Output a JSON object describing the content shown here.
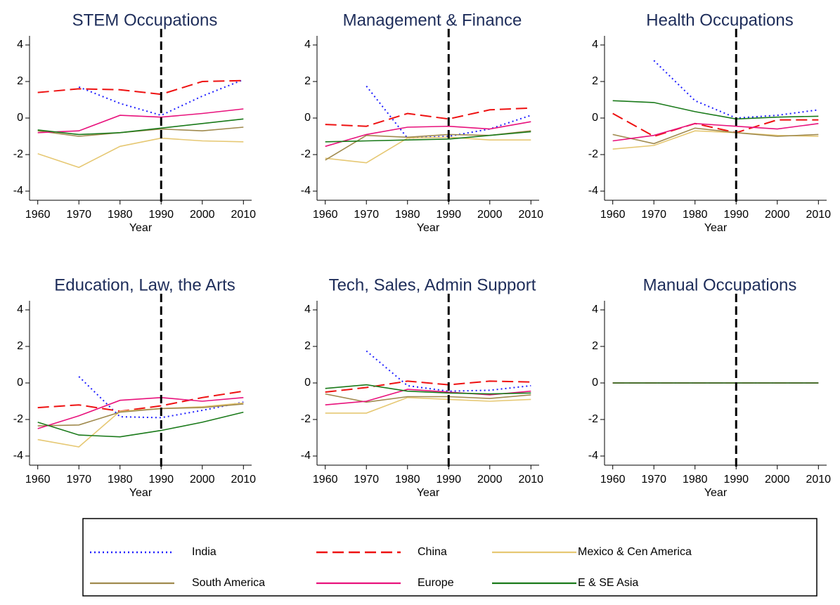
{
  "chart_data": [
    {
      "type": "line",
      "title": "STEM Occupations",
      "xlabel": "Year",
      "x": [
        1960,
        1970,
        1980,
        1990,
        2000,
        2010
      ],
      "xlim": [
        1958,
        2012
      ],
      "xticks": [
        1960,
        1970,
        1980,
        1990,
        2000,
        2010
      ],
      "ylim": [
        -4.5,
        4.5
      ],
      "yticks": [
        -4,
        -2,
        0,
        2,
        4
      ],
      "vline": 1990,
      "series": [
        {
          "name": "India",
          "color": "#1f1fff",
          "style": "dotted",
          "values": [
            null,
            1.7,
            0.8,
            0.15,
            1.2,
            2.1
          ]
        },
        {
          "name": "China",
          "color": "#ee1111",
          "style": "dashed",
          "values": [
            1.4,
            1.6,
            1.55,
            1.3,
            2.0,
            2.05
          ]
        },
        {
          "name": "Mexico & Cen America",
          "color": "#e6c873",
          "style": "solid",
          "values": [
            -1.95,
            -2.7,
            -1.55,
            -1.1,
            -1.25,
            -1.3
          ]
        },
        {
          "name": "South America",
          "color": "#a08a4e",
          "style": "solid",
          "values": [
            -0.7,
            -1.0,
            -0.8,
            -0.6,
            -0.7,
            -0.5
          ]
        },
        {
          "name": "Europe",
          "color": "#e8127c",
          "style": "solid",
          "values": [
            -0.8,
            -0.7,
            0.15,
            0.05,
            0.25,
            0.5
          ]
        },
        {
          "name": "E & SE Asia",
          "color": "#1a7a1a",
          "style": "solid",
          "values": [
            -0.65,
            -0.9,
            -0.8,
            -0.55,
            -0.3,
            -0.05
          ]
        }
      ]
    },
    {
      "type": "line",
      "title": "Management & Finance",
      "xlabel": "Year",
      "x": [
        1960,
        1970,
        1980,
        1990,
        2000,
        2010
      ],
      "xlim": [
        1958,
        2012
      ],
      "xticks": [
        1960,
        1970,
        1980,
        1990,
        2000,
        2010
      ],
      "ylim": [
        -4.5,
        4.5
      ],
      "yticks": [
        -4,
        -2,
        0,
        2,
        4
      ],
      "vline": 1990,
      "series": [
        {
          "name": "India",
          "color": "#1f1fff",
          "style": "dotted",
          "values": [
            null,
            1.75,
            -1.1,
            -1.0,
            -0.6,
            0.15
          ]
        },
        {
          "name": "China",
          "color": "#ee1111",
          "style": "dashed",
          "values": [
            -0.35,
            -0.45,
            0.25,
            -0.05,
            0.45,
            0.55
          ]
        },
        {
          "name": "Mexico & Cen America",
          "color": "#e6c873",
          "style": "solid",
          "values": [
            -2.2,
            -2.45,
            -1.1,
            -1.05,
            -1.2,
            -1.2
          ]
        },
        {
          "name": "South America",
          "color": "#a08a4e",
          "style": "solid",
          "values": [
            -2.3,
            -0.95,
            -1.05,
            -0.9,
            -0.95,
            -0.7
          ]
        },
        {
          "name": "Europe",
          "color": "#e8127c",
          "style": "solid",
          "values": [
            -1.55,
            -0.9,
            -0.5,
            -0.45,
            -0.6,
            -0.2
          ]
        },
        {
          "name": "E & SE Asia",
          "color": "#1a7a1a",
          "style": "solid",
          "values": [
            -1.3,
            -1.25,
            -1.2,
            -1.15,
            -0.95,
            -0.75
          ]
        }
      ]
    },
    {
      "type": "line",
      "title": "Health Occupations",
      "xlabel": "Year",
      "x": [
        1960,
        1970,
        1980,
        1990,
        2000,
        2010
      ],
      "xlim": [
        1958,
        2012
      ],
      "xticks": [
        1960,
        1970,
        1980,
        1990,
        2000,
        2010
      ],
      "ylim": [
        -4.5,
        4.5
      ],
      "yticks": [
        -4,
        -2,
        0,
        2,
        4
      ],
      "vline": 1990,
      "series": [
        {
          "name": "India",
          "color": "#1f1fff",
          "style": "dotted",
          "values": [
            null,
            3.15,
            0.95,
            0.0,
            0.15,
            0.45
          ]
        },
        {
          "name": "China",
          "color": "#ee1111",
          "style": "dashed",
          "values": [
            0.25,
            -1.0,
            -0.3,
            -0.8,
            -0.1,
            -0.1
          ]
        },
        {
          "name": "Mexico & Cen America",
          "color": "#e6c873",
          "style": "solid",
          "values": [
            -1.7,
            -1.5,
            -0.7,
            -0.8,
            -0.95,
            -1.0
          ]
        },
        {
          "name": "South America",
          "color": "#a08a4e",
          "style": "solid",
          "values": [
            -0.9,
            -1.4,
            -0.55,
            -0.8,
            -1.0,
            -0.9
          ]
        },
        {
          "name": "Europe",
          "color": "#e8127c",
          "style": "solid",
          "values": [
            -1.25,
            -0.95,
            -0.3,
            -0.45,
            -0.6,
            -0.3
          ]
        },
        {
          "name": "E & SE Asia",
          "color": "#1a7a1a",
          "style": "solid",
          "values": [
            0.95,
            0.85,
            0.35,
            -0.05,
            0.05,
            0.1
          ]
        }
      ]
    },
    {
      "type": "line",
      "title": "Education, Law, the Arts",
      "xlabel": "Year",
      "x": [
        1960,
        1970,
        1980,
        1990,
        2000,
        2010
      ],
      "xlim": [
        1958,
        2012
      ],
      "xticks": [
        1960,
        1970,
        1980,
        1990,
        2000,
        2010
      ],
      "ylim": [
        -4.5,
        4.5
      ],
      "yticks": [
        -4,
        -2,
        0,
        2,
        4
      ],
      "vline": 1990,
      "series": [
        {
          "name": "India",
          "color": "#1f1fff",
          "style": "dotted",
          "values": [
            null,
            0.35,
            -1.85,
            -1.9,
            -1.5,
            -1.05
          ]
        },
        {
          "name": "China",
          "color": "#ee1111",
          "style": "dashed",
          "values": [
            -1.35,
            -1.2,
            -1.55,
            -1.25,
            -0.8,
            -0.45
          ]
        },
        {
          "name": "Mexico & Cen America",
          "color": "#e6c873",
          "style": "solid",
          "values": [
            -3.1,
            -3.5,
            -1.55,
            -1.4,
            -1.3,
            -1.1
          ]
        },
        {
          "name": "South America",
          "color": "#a08a4e",
          "style": "solid",
          "values": [
            -2.35,
            -2.3,
            -1.6,
            -1.4,
            -1.35,
            -1.15
          ]
        },
        {
          "name": "Europe",
          "color": "#e8127c",
          "style": "solid",
          "values": [
            -2.5,
            -1.8,
            -0.95,
            -0.8,
            -1.0,
            -0.8
          ]
        },
        {
          "name": "E & SE Asia",
          "color": "#1a7a1a",
          "style": "solid",
          "values": [
            -2.15,
            -2.85,
            -2.95,
            -2.6,
            -2.15,
            -1.6
          ]
        }
      ]
    },
    {
      "type": "line",
      "title": "Tech, Sales, Admin Support",
      "xlabel": "Year",
      "x": [
        1960,
        1970,
        1980,
        1990,
        2000,
        2010
      ],
      "xlim": [
        1958,
        2012
      ],
      "xticks": [
        1960,
        1970,
        1980,
        1990,
        2000,
        2010
      ],
      "ylim": [
        -4.5,
        4.5
      ],
      "yticks": [
        -4,
        -2,
        0,
        2,
        4
      ],
      "vline": 1990,
      "series": [
        {
          "name": "India",
          "color": "#1f1fff",
          "style": "dotted",
          "values": [
            null,
            1.75,
            -0.15,
            -0.45,
            -0.4,
            -0.15
          ]
        },
        {
          "name": "China",
          "color": "#ee1111",
          "style": "dashed",
          "values": [
            -0.5,
            -0.25,
            0.1,
            -0.1,
            0.1,
            0.05
          ]
        },
        {
          "name": "Mexico & Cen America",
          "color": "#e6c873",
          "style": "solid",
          "values": [
            -1.65,
            -1.65,
            -0.8,
            -0.9,
            -1.0,
            -0.9
          ]
        },
        {
          "name": "South America",
          "color": "#a08a4e",
          "style": "solid",
          "values": [
            -0.6,
            -1.05,
            -0.75,
            -0.75,
            -0.85,
            -0.65
          ]
        },
        {
          "name": "Europe",
          "color": "#e8127c",
          "style": "solid",
          "values": [
            -1.2,
            -1.0,
            -0.35,
            -0.5,
            -0.65,
            -0.45
          ]
        },
        {
          "name": "E & SE Asia",
          "color": "#1a7a1a",
          "style": "solid",
          "values": [
            -0.3,
            -0.1,
            -0.45,
            -0.55,
            -0.6,
            -0.55
          ]
        }
      ]
    },
    {
      "type": "line",
      "title": "Manual Occupations",
      "xlabel": "Year",
      "x": [
        1960,
        1970,
        1980,
        1990,
        2000,
        2010
      ],
      "xlim": [
        1958,
        2012
      ],
      "xticks": [
        1960,
        1970,
        1980,
        1990,
        2000,
        2010
      ],
      "ylim": [
        -4.5,
        4.5
      ],
      "yticks": [
        -4,
        -2,
        0,
        2,
        4
      ],
      "vline": 1990,
      "series": [
        {
          "name": "India",
          "color": "#1f1fff",
          "style": "dotted",
          "values": [
            null,
            0,
            0,
            0,
            0,
            0
          ]
        },
        {
          "name": "China",
          "color": "#ee1111",
          "style": "dashed",
          "values": [
            0,
            0,
            0,
            0,
            0,
            0
          ]
        },
        {
          "name": "Mexico & Cen America",
          "color": "#e6c873",
          "style": "solid",
          "values": [
            0,
            0,
            0,
            0,
            0,
            0
          ]
        },
        {
          "name": "South America",
          "color": "#a08a4e",
          "style": "solid",
          "values": [
            0,
            0,
            0,
            0,
            0,
            0
          ]
        },
        {
          "name": "Europe",
          "color": "#e8127c",
          "style": "solid",
          "values": [
            0,
            0,
            0,
            0,
            0,
            0
          ]
        },
        {
          "name": "E & SE Asia",
          "color": "#1a7a1a",
          "style": "solid",
          "values": [
            0,
            0,
            0,
            0,
            0,
            0
          ]
        }
      ]
    }
  ]
}
